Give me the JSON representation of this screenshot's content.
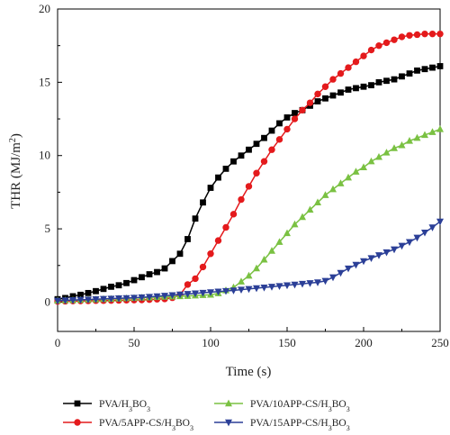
{
  "chart_data": {
    "type": "line",
    "title": "",
    "xlabel": "Time (s)",
    "ylabel": "THR (MJ/m²)",
    "xlim": [
      0,
      250
    ],
    "ylim": [
      -2,
      20
    ],
    "xticks": [
      0,
      50,
      100,
      150,
      200,
      250
    ],
    "yticks": [
      0,
      5,
      10,
      15,
      20
    ],
    "grid": false,
    "legend": "bottom",
    "series": [
      {
        "name_base": "PVA/H",
        "name_sub": "3",
        "name_tail": "BO",
        "name_sub2": "3",
        "color": "#000000",
        "marker": "square",
        "x": [
          0,
          5,
          10,
          15,
          20,
          25,
          30,
          35,
          40,
          45,
          50,
          55,
          60,
          65,
          70,
          75,
          80,
          85,
          90,
          95,
          100,
          105,
          110,
          115,
          120,
          125,
          130,
          135,
          140,
          145,
          150,
          155,
          160,
          165,
          170,
          175,
          180,
          185,
          190,
          195,
          200,
          205,
          210,
          215,
          220,
          225,
          230,
          235,
          240,
          245,
          250
        ],
        "y": [
          0.2,
          0.28,
          0.4,
          0.5,
          0.62,
          0.75,
          0.9,
          1.05,
          1.15,
          1.3,
          1.5,
          1.7,
          1.9,
          2.05,
          2.3,
          2.8,
          3.3,
          4.3,
          5.7,
          6.8,
          7.8,
          8.5,
          9.1,
          9.6,
          10.0,
          10.4,
          10.8,
          11.2,
          11.7,
          12.2,
          12.6,
          12.9,
          13.1,
          13.4,
          13.7,
          13.9,
          14.1,
          14.3,
          14.5,
          14.6,
          14.7,
          14.8,
          15.0,
          15.1,
          15.2,
          15.4,
          15.6,
          15.8,
          15.9,
          16.0,
          16.1
        ]
      },
      {
        "name": "PVA/5APP-CS/H3BO3",
        "color": "#e41a1c",
        "marker": "circle",
        "x": [
          0,
          5,
          10,
          15,
          20,
          25,
          30,
          35,
          40,
          45,
          50,
          55,
          60,
          65,
          70,
          75,
          80,
          85,
          90,
          95,
          100,
          105,
          110,
          115,
          120,
          125,
          130,
          135,
          140,
          145,
          150,
          155,
          160,
          165,
          170,
          175,
          180,
          185,
          190,
          195,
          200,
          205,
          210,
          215,
          220,
          225,
          230,
          235,
          240,
          245,
          250
        ],
        "y": [
          0.05,
          0.06,
          0.07,
          0.08,
          0.09,
          0.1,
          0.1,
          0.11,
          0.12,
          0.13,
          0.14,
          0.15,
          0.17,
          0.2,
          0.22,
          0.3,
          0.5,
          1.2,
          1.6,
          2.4,
          3.3,
          4.2,
          5.1,
          6.0,
          7.0,
          7.9,
          8.8,
          9.6,
          10.4,
          11.1,
          11.8,
          12.5,
          13.1,
          13.6,
          14.2,
          14.7,
          15.2,
          15.6,
          16.0,
          16.4,
          16.8,
          17.2,
          17.5,
          17.7,
          17.9,
          18.1,
          18.2,
          18.25,
          18.3,
          18.3,
          18.3
        ]
      },
      {
        "name": "PVA/10APP-CS/H3BO3",
        "color": "#7ac142",
        "marker": "triangle-up",
        "x": [
          0,
          5,
          10,
          15,
          20,
          25,
          30,
          35,
          40,
          45,
          50,
          55,
          60,
          65,
          70,
          75,
          80,
          85,
          90,
          95,
          100,
          105,
          110,
          115,
          120,
          125,
          130,
          135,
          140,
          145,
          150,
          155,
          160,
          165,
          170,
          175,
          180,
          185,
          190,
          195,
          200,
          205,
          210,
          215,
          220,
          225,
          230,
          235,
          240,
          245,
          250
        ],
        "y": [
          0.1,
          0.12,
          0.13,
          0.15,
          0.17,
          0.18,
          0.2,
          0.22,
          0.24,
          0.26,
          0.28,
          0.3,
          0.32,
          0.34,
          0.36,
          0.38,
          0.4,
          0.42,
          0.45,
          0.48,
          0.5,
          0.6,
          0.8,
          1.0,
          1.4,
          1.8,
          2.3,
          2.9,
          3.5,
          4.1,
          4.7,
          5.3,
          5.8,
          6.3,
          6.8,
          7.3,
          7.7,
          8.1,
          8.5,
          8.9,
          9.2,
          9.6,
          9.9,
          10.2,
          10.5,
          10.7,
          11.0,
          11.2,
          11.4,
          11.6,
          11.8
        ]
      },
      {
        "name": "PVA/15APP-CS/H3BO3",
        "color": "#2b3f97",
        "marker": "triangle-down",
        "x": [
          0,
          5,
          10,
          15,
          20,
          25,
          30,
          35,
          40,
          45,
          50,
          55,
          60,
          65,
          70,
          75,
          80,
          85,
          90,
          95,
          100,
          105,
          110,
          115,
          120,
          125,
          130,
          135,
          140,
          145,
          150,
          155,
          160,
          165,
          170,
          175,
          180,
          185,
          190,
          195,
          200,
          205,
          210,
          215,
          220,
          225,
          230,
          235,
          240,
          245,
          250
        ],
        "y": [
          0.1,
          0.12,
          0.14,
          0.16,
          0.18,
          0.2,
          0.22,
          0.24,
          0.26,
          0.28,
          0.3,
          0.33,
          0.36,
          0.4,
          0.44,
          0.48,
          0.52,
          0.56,
          0.6,
          0.64,
          0.68,
          0.72,
          0.76,
          0.8,
          0.85,
          0.9,
          0.95,
          1.0,
          1.05,
          1.1,
          1.15,
          1.2,
          1.25,
          1.3,
          1.35,
          1.45,
          1.7,
          2.0,
          2.3,
          2.55,
          2.8,
          3.0,
          3.2,
          3.4,
          3.6,
          3.85,
          4.1,
          4.4,
          4.75,
          5.1,
          5.5
        ]
      }
    ]
  },
  "legend_labels": [
    {
      "pre": "PVA/H",
      "mid": "BO",
      "post": ""
    },
    {
      "pre": "PVA/5APP-CS/H",
      "mid": "BO",
      "post": ""
    },
    {
      "pre": "PVA/10APP-CS/H",
      "mid": "BO",
      "post": ""
    },
    {
      "pre": "PVA/15APP-CS/H",
      "mid": "BO",
      "post": ""
    }
  ],
  "subscript_digit": "3",
  "ylabel_pre": "THR (MJ/m",
  "ylabel_sup": "2",
  "ylabel_post": ")"
}
